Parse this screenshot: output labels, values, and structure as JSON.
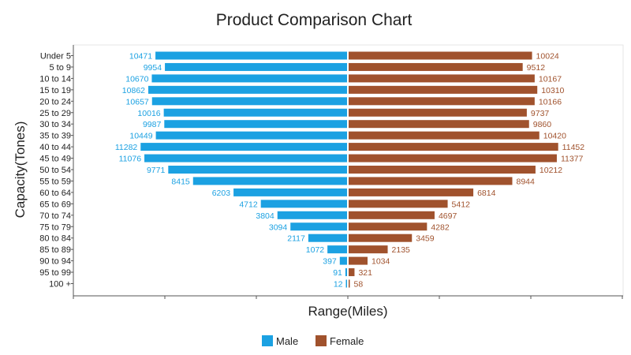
{
  "chart_data": {
    "type": "bar",
    "orientation": "horizontal-diverging",
    "title": "Product Comparison Chart",
    "xlabel": "Range(Miles)",
    "ylabel": "Capacity(Tones)",
    "categories": [
      "Under 5",
      "5 to 9",
      "10 to 14",
      "15 to 19",
      "20 to 24",
      "25 to 29",
      "30 to 34",
      "35 to 39",
      "40 to 44",
      "45 to 49",
      "50 to 54",
      "55 to 59",
      "60 to 64",
      "65 to 69",
      "70 to 74",
      "75 to 79",
      "80 to 84",
      "85 to 89",
      "90 to 94",
      "95 to 99",
      "100 +"
    ],
    "series": [
      {
        "name": "Male",
        "color": "#1ba1e2",
        "side": "left",
        "values": [
          10471,
          9954,
          10670,
          10862,
          10657,
          10016,
          9987,
          10449,
          11282,
          11076,
          9771,
          8415,
          6203,
          4712,
          3804,
          3094,
          2117,
          1072,
          397,
          91,
          12
        ]
      },
      {
        "name": "Female",
        "color": "#a0522d",
        "side": "right",
        "values": [
          10024,
          9512,
          10167,
          10310,
          10166,
          9737,
          9860,
          10420,
          11452,
          11377,
          10212,
          8944,
          6814,
          5412,
          4697,
          4282,
          3459,
          2135,
          1034,
          321,
          58
        ]
      }
    ],
    "xlim": [
      -15000,
      15000
    ],
    "grid": false,
    "legend_position": "bottom-center"
  }
}
